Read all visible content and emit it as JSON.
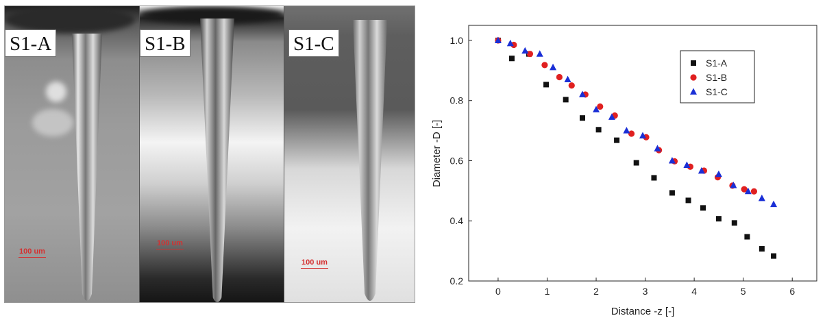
{
  "photos": {
    "panels": [
      {
        "label": "S1-A",
        "scale_label": "100 um"
      },
      {
        "label": "S1-B",
        "scale_label": "100 um"
      },
      {
        "label": "S1-C",
        "scale_label": "100 um"
      }
    ]
  },
  "chart_data": {
    "type": "scatter",
    "title": "",
    "xlabel": "Distance -z [-]",
    "ylabel": "Diameter -D [-]",
    "xlim": [
      -0.6,
      6.5
    ],
    "ylim": [
      0.2,
      1.05
    ],
    "xticks": [
      "0",
      "1",
      "2",
      "3",
      "4",
      "5",
      "6"
    ],
    "yticks": [
      "0.2",
      "0.4",
      "0.6",
      "0.8",
      "1.0"
    ],
    "legend_position": "top-right",
    "series": [
      {
        "name": "S1-A",
        "marker": "square",
        "color": "#111111",
        "x": [
          0,
          0.28,
          0.63,
          0.98,
          1.38,
          1.72,
          2.05,
          2.42,
          2.82,
          3.18,
          3.55,
          3.88,
          4.18,
          4.5,
          4.82,
          5.08,
          5.38,
          5.62
        ],
        "y": [
          1.0,
          0.94,
          0.955,
          0.853,
          0.803,
          0.742,
          0.703,
          0.668,
          0.593,
          0.543,
          0.493,
          0.468,
          0.443,
          0.407,
          0.393,
          0.347,
          0.307,
          0.283
        ]
      },
      {
        "name": "S1-B",
        "marker": "circle",
        "color": "#e02020",
        "x": [
          0,
          0.32,
          0.65,
          0.95,
          1.25,
          1.5,
          1.78,
          2.08,
          2.38,
          2.72,
          3.02,
          3.28,
          3.6,
          3.92,
          4.2,
          4.48,
          4.78,
          5.02,
          5.22
        ],
        "y": [
          1.0,
          0.985,
          0.955,
          0.918,
          0.878,
          0.85,
          0.82,
          0.78,
          0.75,
          0.69,
          0.678,
          0.635,
          0.598,
          0.58,
          0.567,
          0.545,
          0.517,
          0.505,
          0.498
        ]
      },
      {
        "name": "S1-C",
        "marker": "triangle",
        "color": "#1a2fd6",
        "x": [
          0,
          0.25,
          0.55,
          0.85,
          1.12,
          1.42,
          1.72,
          2.0,
          2.32,
          2.62,
          2.95,
          3.25,
          3.55,
          3.85,
          4.15,
          4.5,
          4.8,
          5.1,
          5.38,
          5.62
        ],
        "y": [
          1.0,
          0.99,
          0.965,
          0.955,
          0.91,
          0.87,
          0.82,
          0.77,
          0.745,
          0.7,
          0.683,
          0.64,
          0.6,
          0.585,
          0.566,
          0.555,
          0.518,
          0.498,
          0.475,
          0.455
        ]
      }
    ]
  }
}
